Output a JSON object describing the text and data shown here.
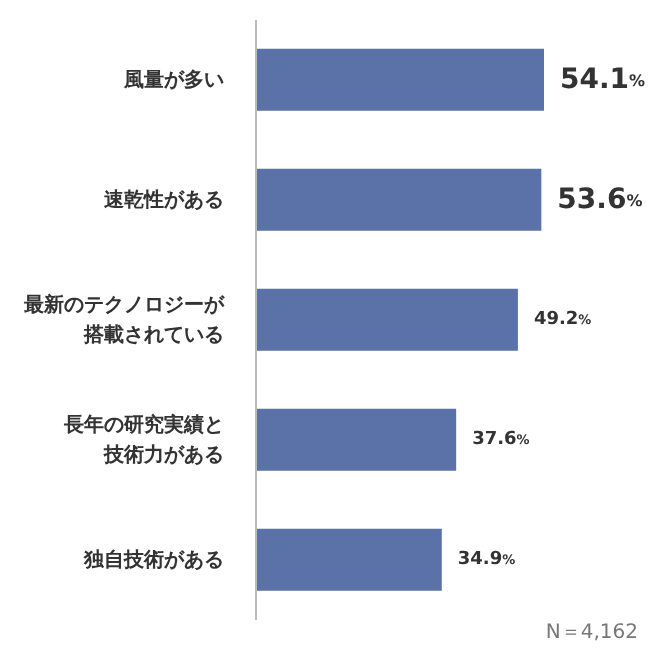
{
  "chart_data": {
    "type": "bar",
    "orientation": "horizontal",
    "categories": [
      "風量が多い",
      "速乾性がある",
      "最新のテクノロジーが搭載されている",
      "長年の研究実績と技術力がある",
      "独自技術がある"
    ],
    "values": [
      54.1,
      53.6,
      49.2,
      37.6,
      34.9
    ],
    "value_labels": [
      "54.1%",
      "53.6%",
      "49.2%",
      "37.6%",
      "34.9%"
    ],
    "color": "#5a72a8",
    "tick_labels": "y",
    "grid": false,
    "legend": false,
    "annotations": [
      "N＝4,162"
    ]
  }
}
